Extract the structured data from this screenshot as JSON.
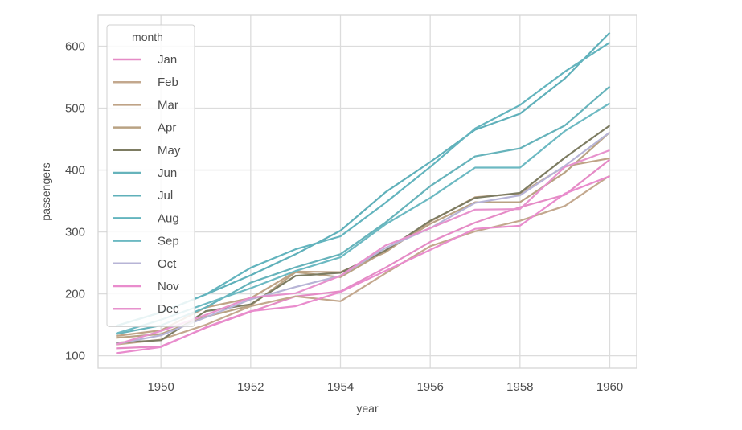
{
  "chart_data": {
    "type": "line",
    "xlabel": "year",
    "ylabel": "passengers",
    "xlim": [
      1948.6,
      1960.6
    ],
    "ylim": [
      80,
      650
    ],
    "xticks": [
      1950,
      1952,
      1954,
      1956,
      1958,
      1960
    ],
    "yticks": [
      100,
      200,
      300,
      400,
      500,
      600
    ],
    "grid": true,
    "legend": {
      "title": "month",
      "placement": "top-left"
    },
    "x": [
      1949,
      1950,
      1951,
      1952,
      1953,
      1954,
      1955,
      1956,
      1957,
      1958,
      1959,
      1960
    ],
    "series": [
      {
        "name": "Jan",
        "color": "#e58bc6",
        "values": [
          112,
          115,
          145,
          171,
          196,
          204,
          242,
          284,
          315,
          340,
          360,
          417
        ]
      },
      {
        "name": "Feb",
        "color": "#c3a88e",
        "values": [
          118,
          126,
          150,
          180,
          196,
          188,
          233,
          277,
          301,
          318,
          342,
          391
        ]
      },
      {
        "name": "Mar",
        "color": "#bfa386",
        "values": [
          132,
          141,
          178,
          193,
          236,
          235,
          267,
          317,
          356,
          362,
          406,
          419
        ]
      },
      {
        "name": "Apr",
        "color": "#b9a283",
        "values": [
          129,
          135,
          163,
          181,
          235,
          227,
          269,
          313,
          348,
          348,
          396,
          461
        ]
      },
      {
        "name": "May",
        "color": "#7d7c62",
        "values": [
          121,
          125,
          172,
          183,
          229,
          234,
          270,
          318,
          355,
          363,
          420,
          472
        ]
      },
      {
        "name": "Jun",
        "color": "#66b3bb",
        "values": [
          135,
          149,
          178,
          218,
          243,
          264,
          315,
          374,
          422,
          435,
          472,
          535
        ]
      },
      {
        "name": "Jul",
        "color": "#5fb0ba",
        "values": [
          148,
          170,
          199,
          230,
          264,
          302,
          364,
          413,
          465,
          491,
          548,
          622
        ]
      },
      {
        "name": "Aug",
        "color": "#63b4be",
        "values": [
          148,
          170,
          199,
          242,
          272,
          293,
          347,
          405,
          467,
          505,
          559,
          606
        ]
      },
      {
        "name": "Sep",
        "color": "#6cb9c2",
        "values": [
          136,
          158,
          184,
          209,
          237,
          259,
          312,
          355,
          404,
          404,
          463,
          508
        ]
      },
      {
        "name": "Oct",
        "color": "#b7b4d6",
        "values": [
          119,
          133,
          162,
          191,
          211,
          229,
          274,
          306,
          347,
          359,
          407,
          461
        ]
      },
      {
        "name": "Nov",
        "color": "#e98ccd",
        "values": [
          104,
          114,
          146,
          172,
          180,
          203,
          237,
          271,
          305,
          310,
          362,
          390
        ]
      },
      {
        "name": "Dec",
        "color": "#e792cd",
        "values": [
          118,
          140,
          166,
          194,
          201,
          229,
          278,
          306,
          336,
          337,
          405,
          432
        ]
      }
    ]
  }
}
